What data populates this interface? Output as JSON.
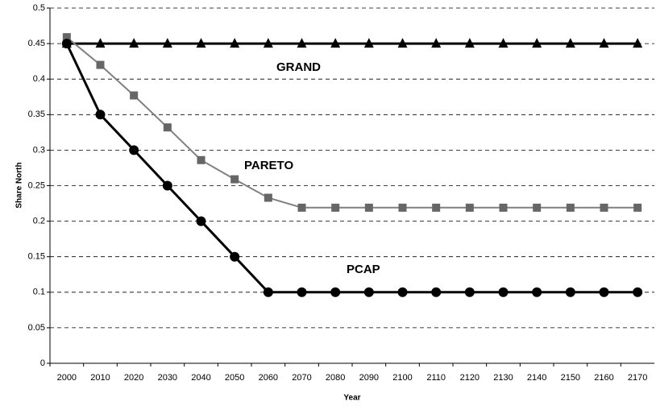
{
  "chart_data": {
    "type": "line",
    "x_label": "Year",
    "y_label": "Share North",
    "categories": [
      "2000",
      "2010",
      "2020",
      "2030",
      "2040",
      "2050",
      "2060",
      "2070",
      "2080",
      "2090",
      "2100",
      "2110",
      "2120",
      "2130",
      "2140",
      "2150",
      "2160",
      "2170"
    ],
    "series": [
      {
        "name": "GRAND",
        "color": "#000000",
        "marker": "triangle",
        "values": [
          0.45,
          0.45,
          0.45,
          0.45,
          0.45,
          0.45,
          0.45,
          0.45,
          0.45,
          0.45,
          0.45,
          0.45,
          0.45,
          0.45,
          0.45,
          0.45,
          0.45,
          0.45
        ]
      },
      {
        "name": "PARETO",
        "color": "#808080",
        "marker": "square",
        "values": [
          0.459,
          0.42,
          0.377,
          0.332,
          0.286,
          0.259,
          0.233,
          0.219,
          0.219,
          0.219,
          0.219,
          0.219,
          0.219,
          0.219,
          0.219,
          0.219,
          0.219,
          0.219
        ]
      },
      {
        "name": "PCAP",
        "color": "#000000",
        "marker": "circle",
        "values": [
          0.45,
          0.35,
          0.3,
          0.25,
          0.2,
          0.15,
          0.1,
          0.1,
          0.1,
          0.1,
          0.1,
          0.1,
          0.1,
          0.1,
          0.1,
          0.1,
          0.1,
          0.1
        ]
      }
    ],
    "ylim": [
      0,
      0.5
    ],
    "yticks": [
      0,
      0.05,
      0.1,
      0.15,
      0.2,
      0.25,
      0.3,
      0.35,
      0.4,
      0.45,
      0.5
    ],
    "grid": true
  }
}
